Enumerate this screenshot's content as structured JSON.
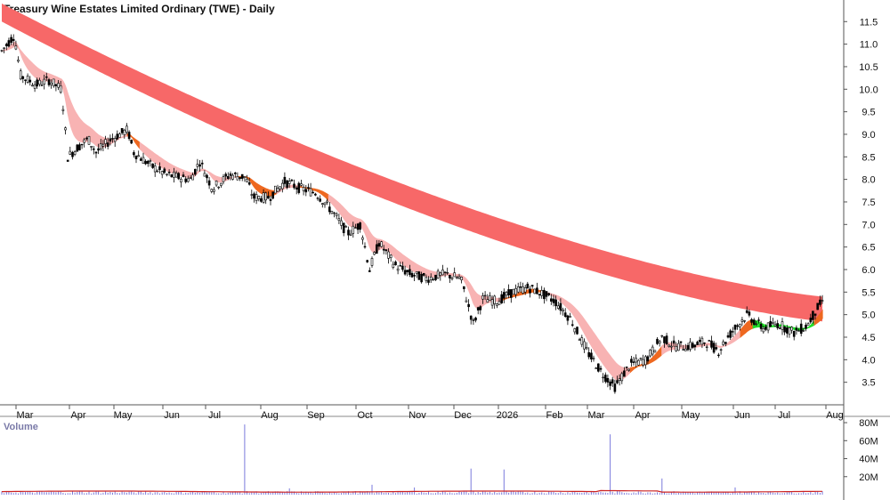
{
  "header": {
    "title": "Treasury Wine Estates Limited Ordinary (TWE) - Daily",
    "volume_label": "Volume"
  },
  "chart_data": {
    "type": "candlestick",
    "title": "Treasury Wine Estates Limited Ordinary (TWE) - Daily",
    "price_axis": {
      "ticks": [
        "3.5",
        "4.0",
        "4.5",
        "5.0",
        "5.5",
        "6.0",
        "6.5",
        "7.0",
        "7.5",
        "8.0",
        "8.5",
        "9.0",
        "9.5",
        "10.0",
        "10.5",
        "11.0",
        "11.5"
      ],
      "range": [
        3.0,
        11.9
      ],
      "side": "right"
    },
    "x_axis": {
      "labels": [
        "Mar",
        "Apr",
        "May",
        "Jun",
        "Jul",
        "Aug",
        "Sep",
        "Oct",
        "Nov",
        "Dec",
        "2026",
        "Feb",
        "Mar",
        "Apr",
        "May",
        "Jun",
        "Jul",
        "Aug"
      ],
      "range_days": [
        0,
        522
      ]
    },
    "volume_axis": {
      "ticks": [
        "20M",
        "40M",
        "60M",
        "80M"
      ],
      "range": [
        0,
        85
      ]
    },
    "colors": {
      "long_band": "#f76868",
      "short_band": "#f8b3b3",
      "short_band_orange": "#ee6820",
      "short_band_green": "#22e02a",
      "candle": "#000000",
      "volume_bar": "#7a7adc",
      "volume_avg": "#cc2222",
      "volume_label": "#7a7aa8"
    },
    "price_path": [
      [
        0,
        10.85
      ],
      [
        8,
        11.2
      ],
      [
        12,
        10.3
      ],
      [
        22,
        10.1
      ],
      [
        30,
        10.2
      ],
      [
        38,
        10.0
      ],
      [
        42,
        8.5
      ],
      [
        48,
        8.7
      ],
      [
        55,
        8.9
      ],
      [
        60,
        8.6
      ],
      [
        70,
        8.9
      ],
      [
        80,
        9.1
      ],
      [
        84,
        8.6
      ],
      [
        95,
        8.3
      ],
      [
        105,
        8.1
      ],
      [
        120,
        8.0
      ],
      [
        126,
        8.4
      ],
      [
        134,
        7.8
      ],
      [
        145,
        8.1
      ],
      [
        155,
        8.05
      ],
      [
        160,
        7.6
      ],
      [
        170,
        7.6
      ],
      [
        180,
        7.95
      ],
      [
        190,
        7.8
      ],
      [
        200,
        7.7
      ],
      [
        210,
        7.3
      ],
      [
        220,
        6.8
      ],
      [
        228,
        7.0
      ],
      [
        234,
        6.0
      ],
      [
        240,
        6.6
      ],
      [
        250,
        6.1
      ],
      [
        260,
        5.9
      ],
      [
        270,
        5.8
      ],
      [
        282,
        5.9
      ],
      [
        292,
        5.8
      ],
      [
        300,
        4.8
      ],
      [
        306,
        5.35
      ],
      [
        315,
        5.3
      ],
      [
        325,
        5.5
      ],
      [
        335,
        5.6
      ],
      [
        342,
        5.5
      ],
      [
        352,
        5.3
      ],
      [
        362,
        4.9
      ],
      [
        372,
        4.2
      ],
      [
        382,
        3.7
      ],
      [
        390,
        3.4
      ],
      [
        400,
        3.9
      ],
      [
        410,
        4.0
      ],
      [
        420,
        4.5
      ],
      [
        428,
        4.3
      ],
      [
        438,
        4.3
      ],
      [
        448,
        4.4
      ],
      [
        456,
        4.2
      ],
      [
        464,
        4.6
      ],
      [
        474,
        5.0
      ],
      [
        484,
        4.7
      ],
      [
        494,
        4.8
      ],
      [
        504,
        4.6
      ],
      [
        512,
        4.75
      ],
      [
        518,
        5.1
      ],
      [
        522,
        5.3
      ]
    ],
    "volume_spikes": [
      {
        "day": 154,
        "value": 78
      },
      {
        "day": 183,
        "value": 7
      },
      {
        "day": 235,
        "value": 11
      },
      {
        "day": 263,
        "value": 8
      },
      {
        "day": 298,
        "value": 29
      },
      {
        "day": 320,
        "value": 28
      },
      {
        "day": 387,
        "value": 67
      },
      {
        "day": 420,
        "value": 18
      },
      {
        "day": 466,
        "value": 8
      }
    ],
    "bands": {
      "long_period_upper_start": 11.9,
      "long_period_upper_end": 5.4,
      "long_period_lower_start": 11.5,
      "long_period_lower_end": 4.85
    }
  }
}
